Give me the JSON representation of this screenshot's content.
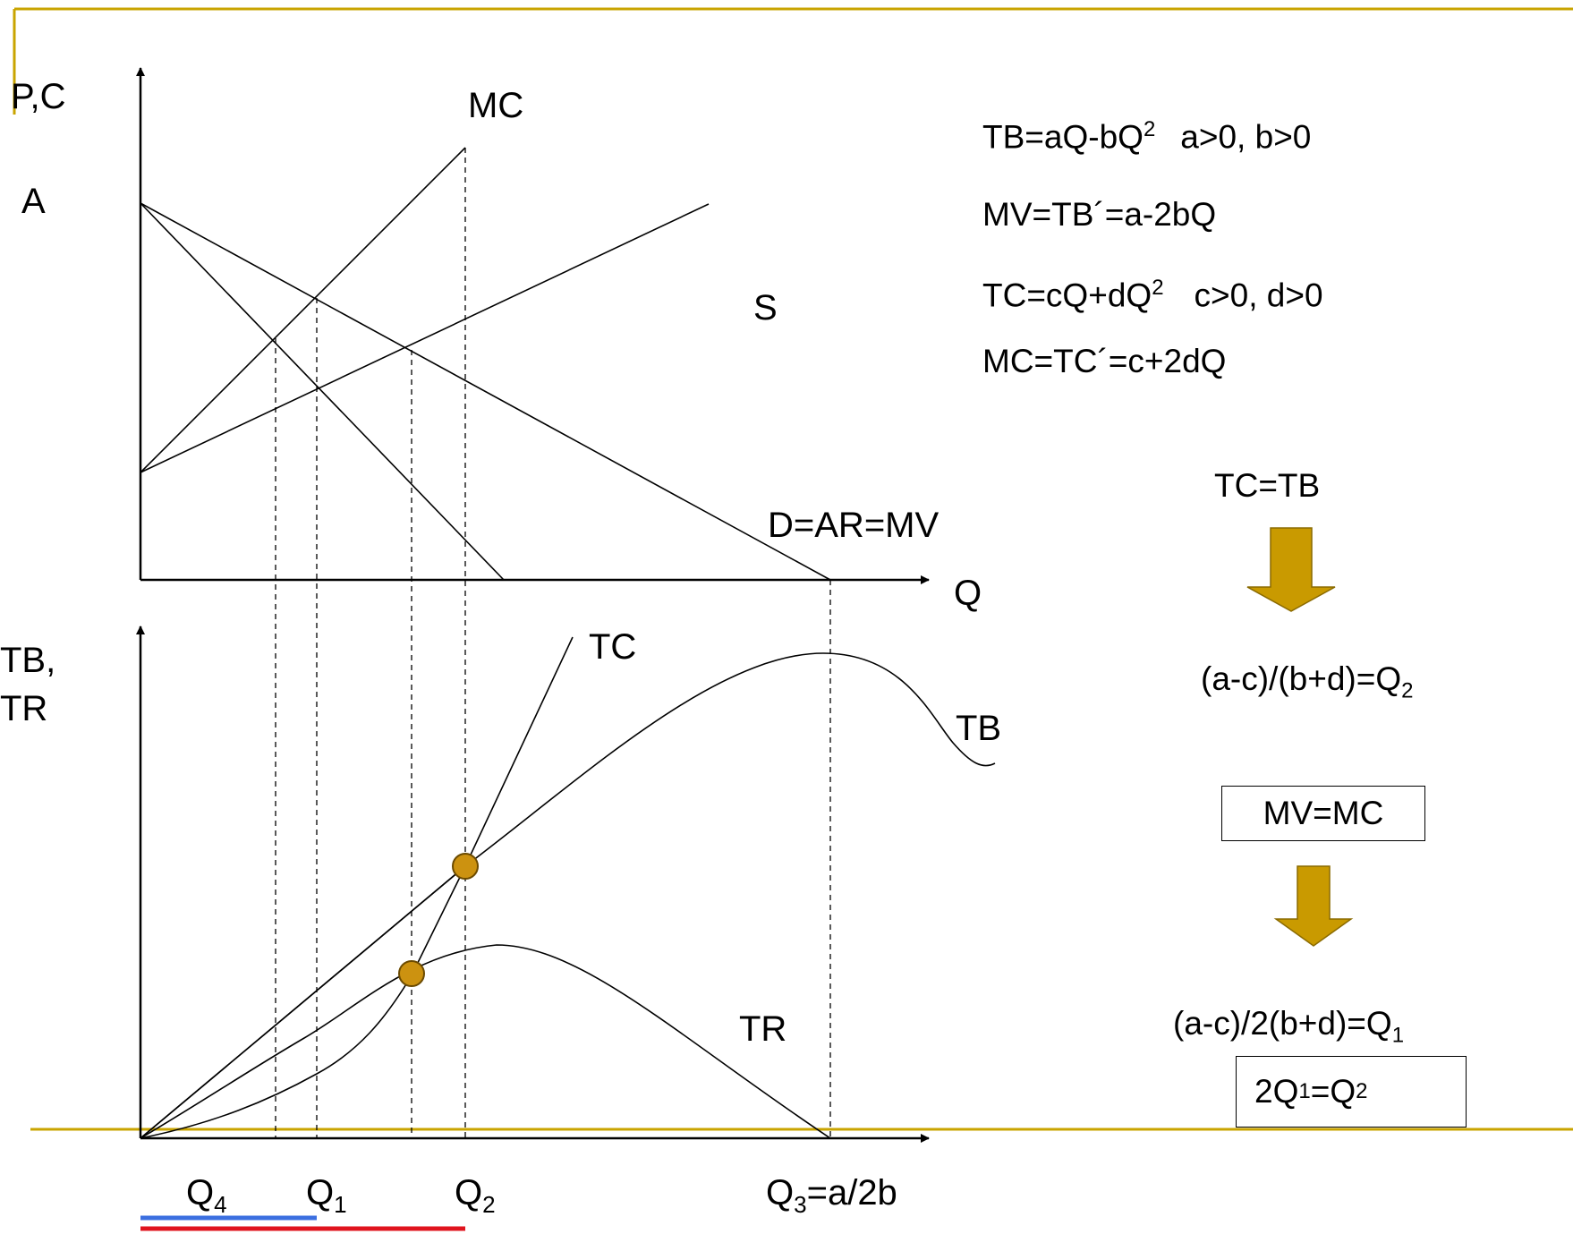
{
  "colors": {
    "frame": "#c9a400",
    "arrow": "#c99a00",
    "arrow_edge": "#8a6a00",
    "dot": "#cc9210",
    "bar_blue": "#3b6fe0",
    "bar_red": "#e0141e",
    "line": "#000000"
  },
  "top_axes": {
    "y_label": "P,C",
    "x_label": "Q",
    "intercept_label": "A"
  },
  "bottom_axes": {
    "y_label_line1": "TB,",
    "y_label_line2": "TR"
  },
  "curves": {
    "mc": "MC",
    "s": "S",
    "demand": "D=AR=MV",
    "tc": "TC",
    "tb": "TB",
    "tr": "TR"
  },
  "q_labels": {
    "q4": {
      "base": "Q",
      "sub": "4"
    },
    "q1": {
      "base": "Q",
      "sub": "1"
    },
    "q2": {
      "base": "Q",
      "sub": "2"
    },
    "q3": {
      "base": "Q",
      "sub": "3",
      "suffix": "=a/2b"
    }
  },
  "equations": {
    "tb": {
      "text": "TB=aQ-bQ",
      "sup": "2",
      "cond": "a>0, b>0"
    },
    "mv": "MV=TB´=a-2bQ",
    "tc": {
      "text": "TC=cQ+dQ",
      "sup": "2",
      "cond": "c>0, d>0"
    },
    "mc": "MC=TC´=c+2dQ"
  },
  "derivation": {
    "tc_eq_tb": "TC=TB",
    "q2_result": {
      "text": "(a-c)/(b+d)=Q",
      "sub": "2"
    },
    "mv_eq_mc": "MV=MC",
    "q1_result": {
      "text": "(a-c)/2(b+d)=Q",
      "sub": "1"
    },
    "relation": {
      "pre": "2Q",
      "sub1": "1",
      "mid": "=Q",
      "sub2": "2"
    }
  },
  "icons": [
    "down-arrow-icon",
    "intersection-dot-icon"
  ]
}
